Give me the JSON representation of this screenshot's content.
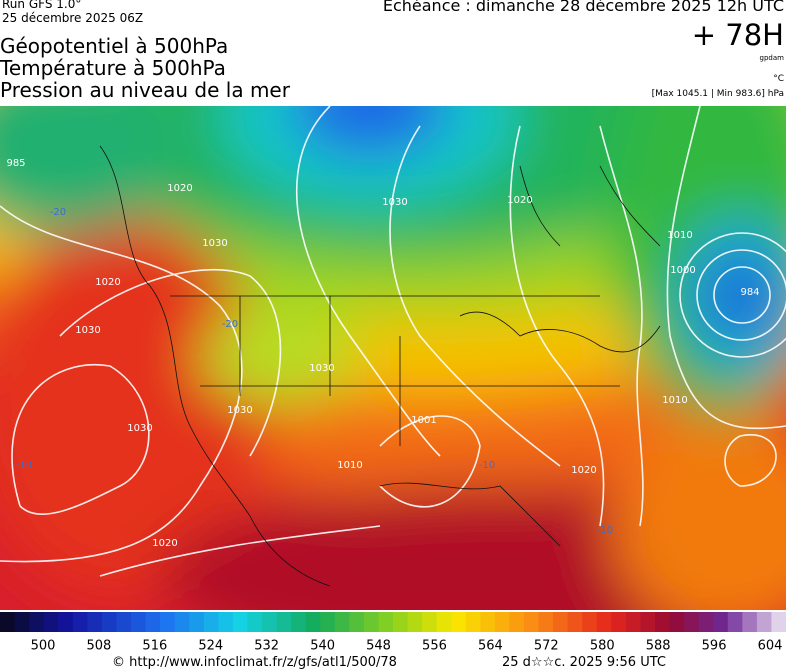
{
  "header": {
    "run": "Run GFS 1.0°",
    "date": "25 décembre 2025 06Z",
    "titles": [
      "Géopotentiel à 500hPa",
      "Température à 500hPa",
      "Pression au niveau de la mer"
    ],
    "echeance": "Echéance : dimanche 28 décembre 2025 12h UTC",
    "lead": "+ 78H",
    "unit_gpdam": "gpdam",
    "unit_temp": "°C",
    "pressure_range": "[Max 1045.1 | Min 983.6] hPa"
  },
  "map": {
    "labels": [
      "985",
      "-20",
      "1020",
      "1030",
      "1020",
      "1030",
      "1030",
      "-10",
      "1020",
      "1030",
      "1020",
      "1010",
      "1000",
      "984",
      "1010",
      "1020",
      "1001",
      "1010",
      "1030",
      "1030",
      "-10",
      "-10",
      "-20"
    ]
  },
  "colorbar": {
    "ticks": [
      500,
      508,
      516,
      524,
      532,
      540,
      548,
      556,
      564,
      572,
      580,
      588,
      596,
      604
    ]
  },
  "footer": {
    "url": "© http://www.infoclimat.fr/z/gfs/atl1/500/78",
    "timestamp": "25 d☆☆c. 2025  9:56 UTC"
  }
}
